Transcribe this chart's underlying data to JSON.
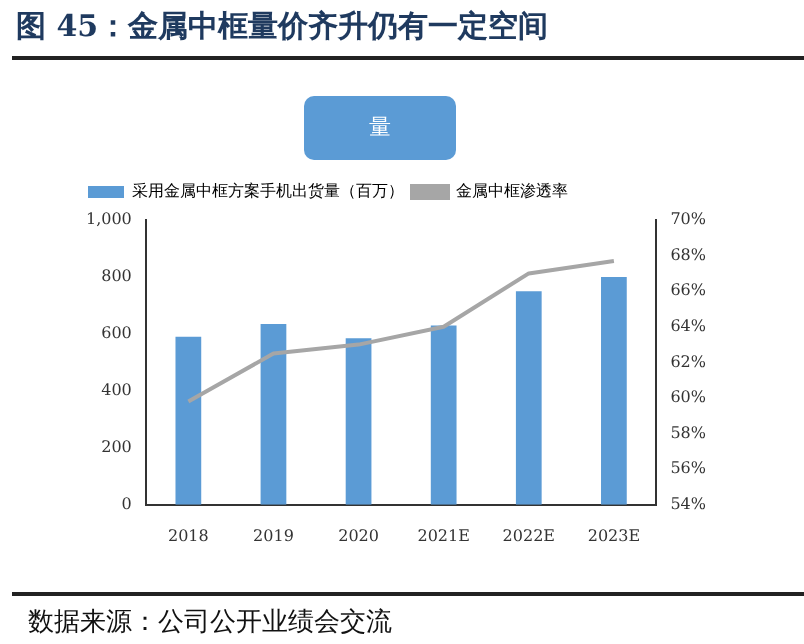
{
  "chart_data": {
    "type": "bar",
    "title": "图 45：金属中框量价齐升仍有一定空间",
    "subtitle": "量",
    "categories": [
      "2018",
      "2019",
      "2020",
      "2021E",
      "2022E",
      "2023E"
    ],
    "series": [
      {
        "name": "采用金属中框方案手机出货量（百万）",
        "color": "#5b9bd5",
        "values": [
          590,
          635,
          585,
          630,
          750,
          800
        ]
      },
      {
        "name": "金属中框渗透率",
        "type": "line",
        "axis": "y2",
        "color": "#a6a6a6",
        "values": [
          59.8,
          62.5,
          63.0,
          64.0,
          67.0,
          67.7
        ]
      }
    ],
    "ylim": [
      0,
      1000
    ],
    "yticks": [
      0,
      200,
      400,
      600,
      800,
      {
        "value": 1000,
        "label": "1,000"
      }
    ],
    "y2lim": [
      54,
      70
    ],
    "y2ticks": [
      {
        "value": 54,
        "label": "54%"
      },
      {
        "value": 56,
        "label": "56%"
      },
      {
        "value": 58,
        "label": "58%"
      },
      {
        "value": 60,
        "label": "60%"
      },
      {
        "value": 62,
        "label": "62%"
      },
      {
        "value": 64,
        "label": "64%"
      },
      {
        "value": 66,
        "label": "66%"
      },
      {
        "value": 68,
        "label": "68%"
      },
      {
        "value": 70,
        "label": "70%"
      }
    ],
    "grid": false,
    "legend": "top left",
    "marker": "none",
    "annotations": [
      "数据来源：公司公开业绩会交流"
    ]
  }
}
